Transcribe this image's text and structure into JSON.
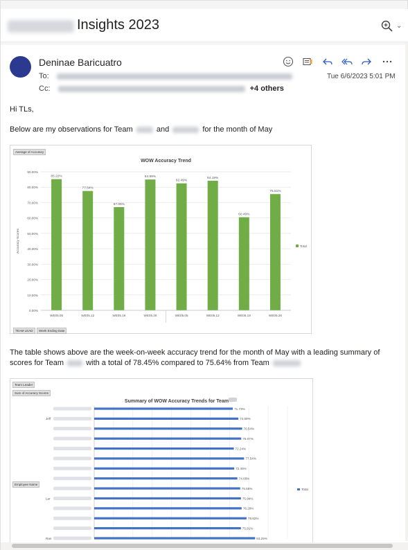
{
  "subject": {
    "title": "Insights 2023"
  },
  "message": {
    "sender": "Deninae Baricuatro",
    "to_label": "To:",
    "cc_label": "Cc:",
    "cc_more": "+4 others",
    "date": "Tue 6/6/2023 5:01 PM"
  },
  "body": {
    "greeting": "Hi TLs,",
    "intro_a": "Below are my observations for Team",
    "intro_b": "and",
    "intro_c": "for the month of May",
    "para_a": "The table shows above are the week-on-week accuracy trend for the month of May with a leading summary of scores for Team",
    "para_b": "with a total of 78.45% compared to 75.64% from Team"
  },
  "icons": {
    "zoom": "zoom-icon",
    "emoji": "smiley-icon",
    "immersive": "immersive-reader-icon",
    "reply": "reply-icon",
    "reply_all": "reply-all-icon",
    "forward": "forward-icon",
    "more": "more-icon"
  },
  "colors": {
    "avatar": "#2b3990",
    "bar_green": "#70ad47",
    "bar_blue": "#4472c4"
  },
  "chart_data": [
    {
      "type": "bar",
      "title": "WOW Accuracy Trend",
      "ylabel": "Accuracy Scores",
      "categories": [
        "WE05.05",
        "WE05.12",
        "WE05.19",
        "WE05.26",
        "WE05.05",
        "WE05.12",
        "WE05.19",
        "WE05.26"
      ],
      "values": [
        85.22,
        77.54,
        67.05,
        84.99,
        82.49,
        84.19,
        60.49,
        75.51
      ],
      "data_labels": [
        "85.22%",
        "77.54%",
        "67.05%",
        "84.99%",
        "82.49%",
        "84.19%",
        "60.49%",
        "75.51%"
      ],
      "ylim": [
        0,
        90
      ],
      "yticks": [
        "0.00%",
        "10.00%",
        "20.00%",
        "30.00%",
        "40.00%",
        "50.00%",
        "60.00%",
        "70.00%",
        "80.00%",
        "90.00%"
      ],
      "legend": [
        "Total"
      ],
      "legend_position": "right",
      "grid": true,
      "field_buttons": [
        "Average of Accuracy",
        "TEAM LEAD",
        "Week Ending Date"
      ]
    },
    {
      "type": "bar",
      "orientation": "horizontal",
      "title": "Summary of WOW Accuracy Trends for Team",
      "categories_partial": [
        "Jeff",
        "Lar",
        "Ran"
      ],
      "values": [
        71.73,
        74.59,
        76.54,
        76.07,
        72.24,
        77.54,
        72.45,
        74.08,
        75.55,
        75.94,
        76.28,
        78.82,
        75.91,
        83.25
      ],
      "data_labels": [
        "71.73%",
        "74.59%",
        "76.54%",
        "76.07%",
        "72.24%",
        "77.54%",
        "72.45%",
        "74.08%",
        "75.55%",
        "75.94%",
        "76.28%",
        "78.82%",
        "75.91%",
        "83.25%"
      ],
      "legend": [
        "Total"
      ],
      "legend_position": "right",
      "grid": true,
      "field_buttons": [
        "Team Leader",
        "Sum of Accuracy Scores",
        "Employee Name"
      ]
    }
  ]
}
